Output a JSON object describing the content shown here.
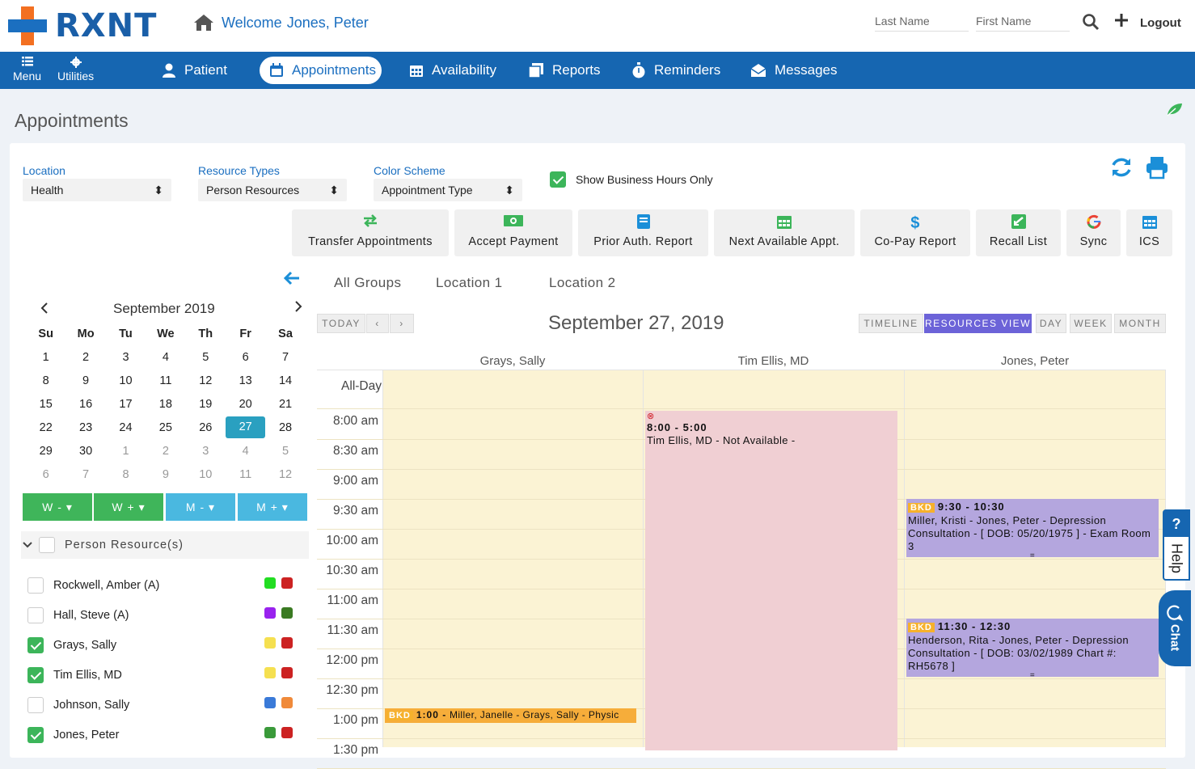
{
  "brand": {
    "name": "RXNT"
  },
  "header": {
    "welcome": "Welcome",
    "user": "Jones, Peter",
    "last_name_placeholder": "Last Name",
    "first_name_placeholder": "First Name",
    "logout": "Logout"
  },
  "nav": {
    "menu": "Menu",
    "utilities": "Utilities",
    "items": [
      {
        "label": "Patient"
      },
      {
        "label": "Appointments"
      },
      {
        "label": "Availability"
      },
      {
        "label": "Reports"
      },
      {
        "label": "Reminders"
      },
      {
        "label": "Messages"
      }
    ]
  },
  "page_title": "Appointments",
  "filters": {
    "location_label": "Location",
    "location_value": "Health",
    "resource_label": "Resource Types",
    "resource_value": "Person Resources",
    "color_label": "Color Scheme",
    "color_value": "Appointment Type",
    "business_hours": "Show Business Hours Only",
    "business_hours_checked": true
  },
  "tools": [
    {
      "label": "Transfer Appointments",
      "icon": "transfer-icon"
    },
    {
      "label": "Accept Payment",
      "icon": "money-icon"
    },
    {
      "label": "Prior Auth. Report",
      "icon": "report-icon"
    },
    {
      "label": "Next Available Appt.",
      "icon": "calendar-icon"
    },
    {
      "label": "Co-Pay Report",
      "icon": "dollar-icon"
    },
    {
      "label": "Recall List",
      "icon": "recall-icon"
    },
    {
      "label": "Sync",
      "icon": "google-icon"
    },
    {
      "label": "ICS",
      "icon": "ics-icon"
    }
  ],
  "mini_calendar": {
    "month": "September 2019",
    "weekdays": [
      "Su",
      "Mo",
      "Tu",
      "We",
      "Th",
      "Fr",
      "Sa"
    ],
    "weeks": [
      [
        "1",
        "2",
        "3",
        "4",
        "5",
        "6",
        "7"
      ],
      [
        "8",
        "9",
        "10",
        "11",
        "12",
        "13",
        "14"
      ],
      [
        "15",
        "16",
        "17",
        "18",
        "19",
        "20",
        "21"
      ],
      [
        "22",
        "23",
        "24",
        "25",
        "26",
        "27",
        "28"
      ],
      [
        "29",
        "30",
        "1",
        "2",
        "3",
        "4",
        "5"
      ],
      [
        "6",
        "7",
        "8",
        "9",
        "10",
        "11",
        "12"
      ]
    ],
    "selected": "27"
  },
  "week_buttons": [
    "W -",
    "W +",
    "M -",
    "M +"
  ],
  "resources": {
    "header": "Person Resource(s)",
    "items": [
      {
        "name": "Rockwell, Amber (A)",
        "checked": false,
        "c1": "#22dd22",
        "c2": "#cc2222"
      },
      {
        "name": "Hall, Steve (A)",
        "checked": false,
        "c1": "#9922ee",
        "c2": "#3a7a22"
      },
      {
        "name": "Grays, Sally",
        "checked": true,
        "c1": "#f5e050",
        "c2": "#cc2222"
      },
      {
        "name": "Tim Ellis, MD",
        "checked": true,
        "c1": "#f5e050",
        "c2": "#cc2222"
      },
      {
        "name": "Johnson, Sally",
        "checked": false,
        "c1": "#3a7ad8",
        "c2": "#f08a3a"
      },
      {
        "name": "Jones, Peter",
        "checked": true,
        "c1": "#3a9a3a",
        "c2": "#cc2222"
      }
    ]
  },
  "location_tabs": [
    "All Groups",
    "Location 1",
    "Location 2"
  ],
  "controls": {
    "today": "TODAY",
    "views": [
      "TIMELINE",
      "RESOURCES VIEW",
      "DAY",
      "WEEK",
      "MONTH"
    ],
    "active_view": "RESOURCES VIEW"
  },
  "schedule": {
    "date": "September 27, 2019",
    "columns": [
      "Grays, Sally",
      "Tim Ellis, MD",
      "Jones, Peter"
    ],
    "all_day": "All-Day",
    "times": [
      "8:00 am",
      "8:30 am",
      "9:00 am",
      "9:30 am",
      "10:00 am",
      "10:30 am",
      "11:00 am",
      "11:30 am",
      "12:00 pm",
      "12:30 pm",
      "1:00 pm",
      "1:30 pm"
    ],
    "events": [
      {
        "tag": "",
        "time": "8:00 - 5:00",
        "text": "Tim Ellis, MD - Not Available -"
      },
      {
        "tag": "BKD",
        "time": "9:30 - 10:30",
        "text": "Miller, Kristi - Jones, Peter - Depression Consultation - [ DOB: 05/20/1975 ] - Exam Room 3"
      },
      {
        "tag": "BKD",
        "time": "11:30 - 12:30",
        "text": "Henderson, Rita - Jones, Peter - Depression Consultation - [ DOB: 03/02/1989 Chart #: RH5678 ]"
      },
      {
        "tag": "BKD",
        "time": "1:00 -",
        "text": "Miller, Janelle - Grays, Sally - Physic"
      }
    ]
  },
  "side": {
    "help": "Help",
    "help_q": "?",
    "chat": "Chat"
  }
}
